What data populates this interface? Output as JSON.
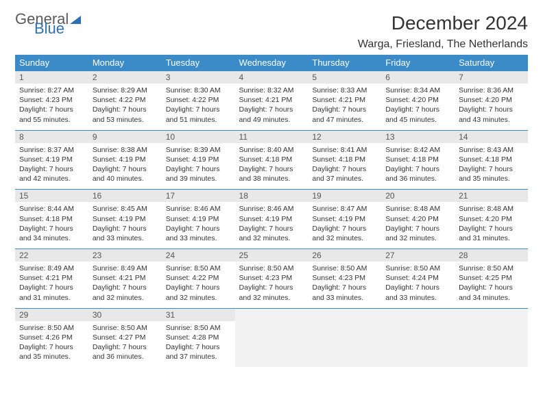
{
  "logo": {
    "line1": "General",
    "line2": "Blue"
  },
  "title": "December 2024",
  "location": "Warga, Friesland, The Netherlands",
  "colors": {
    "header_bg": "#3b8bc8",
    "header_text": "#ffffff",
    "daynum_bg": "#e8e8e8",
    "border": "#3b8bc8",
    "logo_gray": "#5a5a5a",
    "logo_blue": "#2f6fb3"
  },
  "weekday_labels": [
    "Sunday",
    "Monday",
    "Tuesday",
    "Wednesday",
    "Thursday",
    "Friday",
    "Saturday"
  ],
  "weeks": [
    [
      {
        "day": "1",
        "sunrise": "Sunrise: 8:27 AM",
        "sunset": "Sunset: 4:23 PM",
        "daylight": "Daylight: 7 hours and 55 minutes."
      },
      {
        "day": "2",
        "sunrise": "Sunrise: 8:29 AM",
        "sunset": "Sunset: 4:22 PM",
        "daylight": "Daylight: 7 hours and 53 minutes."
      },
      {
        "day": "3",
        "sunrise": "Sunrise: 8:30 AM",
        "sunset": "Sunset: 4:22 PM",
        "daylight": "Daylight: 7 hours and 51 minutes."
      },
      {
        "day": "4",
        "sunrise": "Sunrise: 8:32 AM",
        "sunset": "Sunset: 4:21 PM",
        "daylight": "Daylight: 7 hours and 49 minutes."
      },
      {
        "day": "5",
        "sunrise": "Sunrise: 8:33 AM",
        "sunset": "Sunset: 4:21 PM",
        "daylight": "Daylight: 7 hours and 47 minutes."
      },
      {
        "day": "6",
        "sunrise": "Sunrise: 8:34 AM",
        "sunset": "Sunset: 4:20 PM",
        "daylight": "Daylight: 7 hours and 45 minutes."
      },
      {
        "day": "7",
        "sunrise": "Sunrise: 8:36 AM",
        "sunset": "Sunset: 4:20 PM",
        "daylight": "Daylight: 7 hours and 43 minutes."
      }
    ],
    [
      {
        "day": "8",
        "sunrise": "Sunrise: 8:37 AM",
        "sunset": "Sunset: 4:19 PM",
        "daylight": "Daylight: 7 hours and 42 minutes."
      },
      {
        "day": "9",
        "sunrise": "Sunrise: 8:38 AM",
        "sunset": "Sunset: 4:19 PM",
        "daylight": "Daylight: 7 hours and 40 minutes."
      },
      {
        "day": "10",
        "sunrise": "Sunrise: 8:39 AM",
        "sunset": "Sunset: 4:19 PM",
        "daylight": "Daylight: 7 hours and 39 minutes."
      },
      {
        "day": "11",
        "sunrise": "Sunrise: 8:40 AM",
        "sunset": "Sunset: 4:18 PM",
        "daylight": "Daylight: 7 hours and 38 minutes."
      },
      {
        "day": "12",
        "sunrise": "Sunrise: 8:41 AM",
        "sunset": "Sunset: 4:18 PM",
        "daylight": "Daylight: 7 hours and 37 minutes."
      },
      {
        "day": "13",
        "sunrise": "Sunrise: 8:42 AM",
        "sunset": "Sunset: 4:18 PM",
        "daylight": "Daylight: 7 hours and 36 minutes."
      },
      {
        "day": "14",
        "sunrise": "Sunrise: 8:43 AM",
        "sunset": "Sunset: 4:18 PM",
        "daylight": "Daylight: 7 hours and 35 minutes."
      }
    ],
    [
      {
        "day": "15",
        "sunrise": "Sunrise: 8:44 AM",
        "sunset": "Sunset: 4:18 PM",
        "daylight": "Daylight: 7 hours and 34 minutes."
      },
      {
        "day": "16",
        "sunrise": "Sunrise: 8:45 AM",
        "sunset": "Sunset: 4:19 PM",
        "daylight": "Daylight: 7 hours and 33 minutes."
      },
      {
        "day": "17",
        "sunrise": "Sunrise: 8:46 AM",
        "sunset": "Sunset: 4:19 PM",
        "daylight": "Daylight: 7 hours and 33 minutes."
      },
      {
        "day": "18",
        "sunrise": "Sunrise: 8:46 AM",
        "sunset": "Sunset: 4:19 PM",
        "daylight": "Daylight: 7 hours and 32 minutes."
      },
      {
        "day": "19",
        "sunrise": "Sunrise: 8:47 AM",
        "sunset": "Sunset: 4:19 PM",
        "daylight": "Daylight: 7 hours and 32 minutes."
      },
      {
        "day": "20",
        "sunrise": "Sunrise: 8:48 AM",
        "sunset": "Sunset: 4:20 PM",
        "daylight": "Daylight: 7 hours and 32 minutes."
      },
      {
        "day": "21",
        "sunrise": "Sunrise: 8:48 AM",
        "sunset": "Sunset: 4:20 PM",
        "daylight": "Daylight: 7 hours and 31 minutes."
      }
    ],
    [
      {
        "day": "22",
        "sunrise": "Sunrise: 8:49 AM",
        "sunset": "Sunset: 4:21 PM",
        "daylight": "Daylight: 7 hours and 31 minutes."
      },
      {
        "day": "23",
        "sunrise": "Sunrise: 8:49 AM",
        "sunset": "Sunset: 4:21 PM",
        "daylight": "Daylight: 7 hours and 32 minutes."
      },
      {
        "day": "24",
        "sunrise": "Sunrise: 8:50 AM",
        "sunset": "Sunset: 4:22 PM",
        "daylight": "Daylight: 7 hours and 32 minutes."
      },
      {
        "day": "25",
        "sunrise": "Sunrise: 8:50 AM",
        "sunset": "Sunset: 4:23 PM",
        "daylight": "Daylight: 7 hours and 32 minutes."
      },
      {
        "day": "26",
        "sunrise": "Sunrise: 8:50 AM",
        "sunset": "Sunset: 4:23 PM",
        "daylight": "Daylight: 7 hours and 33 minutes."
      },
      {
        "day": "27",
        "sunrise": "Sunrise: 8:50 AM",
        "sunset": "Sunset: 4:24 PM",
        "daylight": "Daylight: 7 hours and 33 minutes."
      },
      {
        "day": "28",
        "sunrise": "Sunrise: 8:50 AM",
        "sunset": "Sunset: 4:25 PM",
        "daylight": "Daylight: 7 hours and 34 minutes."
      }
    ],
    [
      {
        "day": "29",
        "sunrise": "Sunrise: 8:50 AM",
        "sunset": "Sunset: 4:26 PM",
        "daylight": "Daylight: 7 hours and 35 minutes."
      },
      {
        "day": "30",
        "sunrise": "Sunrise: 8:50 AM",
        "sunset": "Sunset: 4:27 PM",
        "daylight": "Daylight: 7 hours and 36 minutes."
      },
      {
        "day": "31",
        "sunrise": "Sunrise: 8:50 AM",
        "sunset": "Sunset: 4:28 PM",
        "daylight": "Daylight: 7 hours and 37 minutes."
      },
      null,
      null,
      null,
      null
    ]
  ]
}
